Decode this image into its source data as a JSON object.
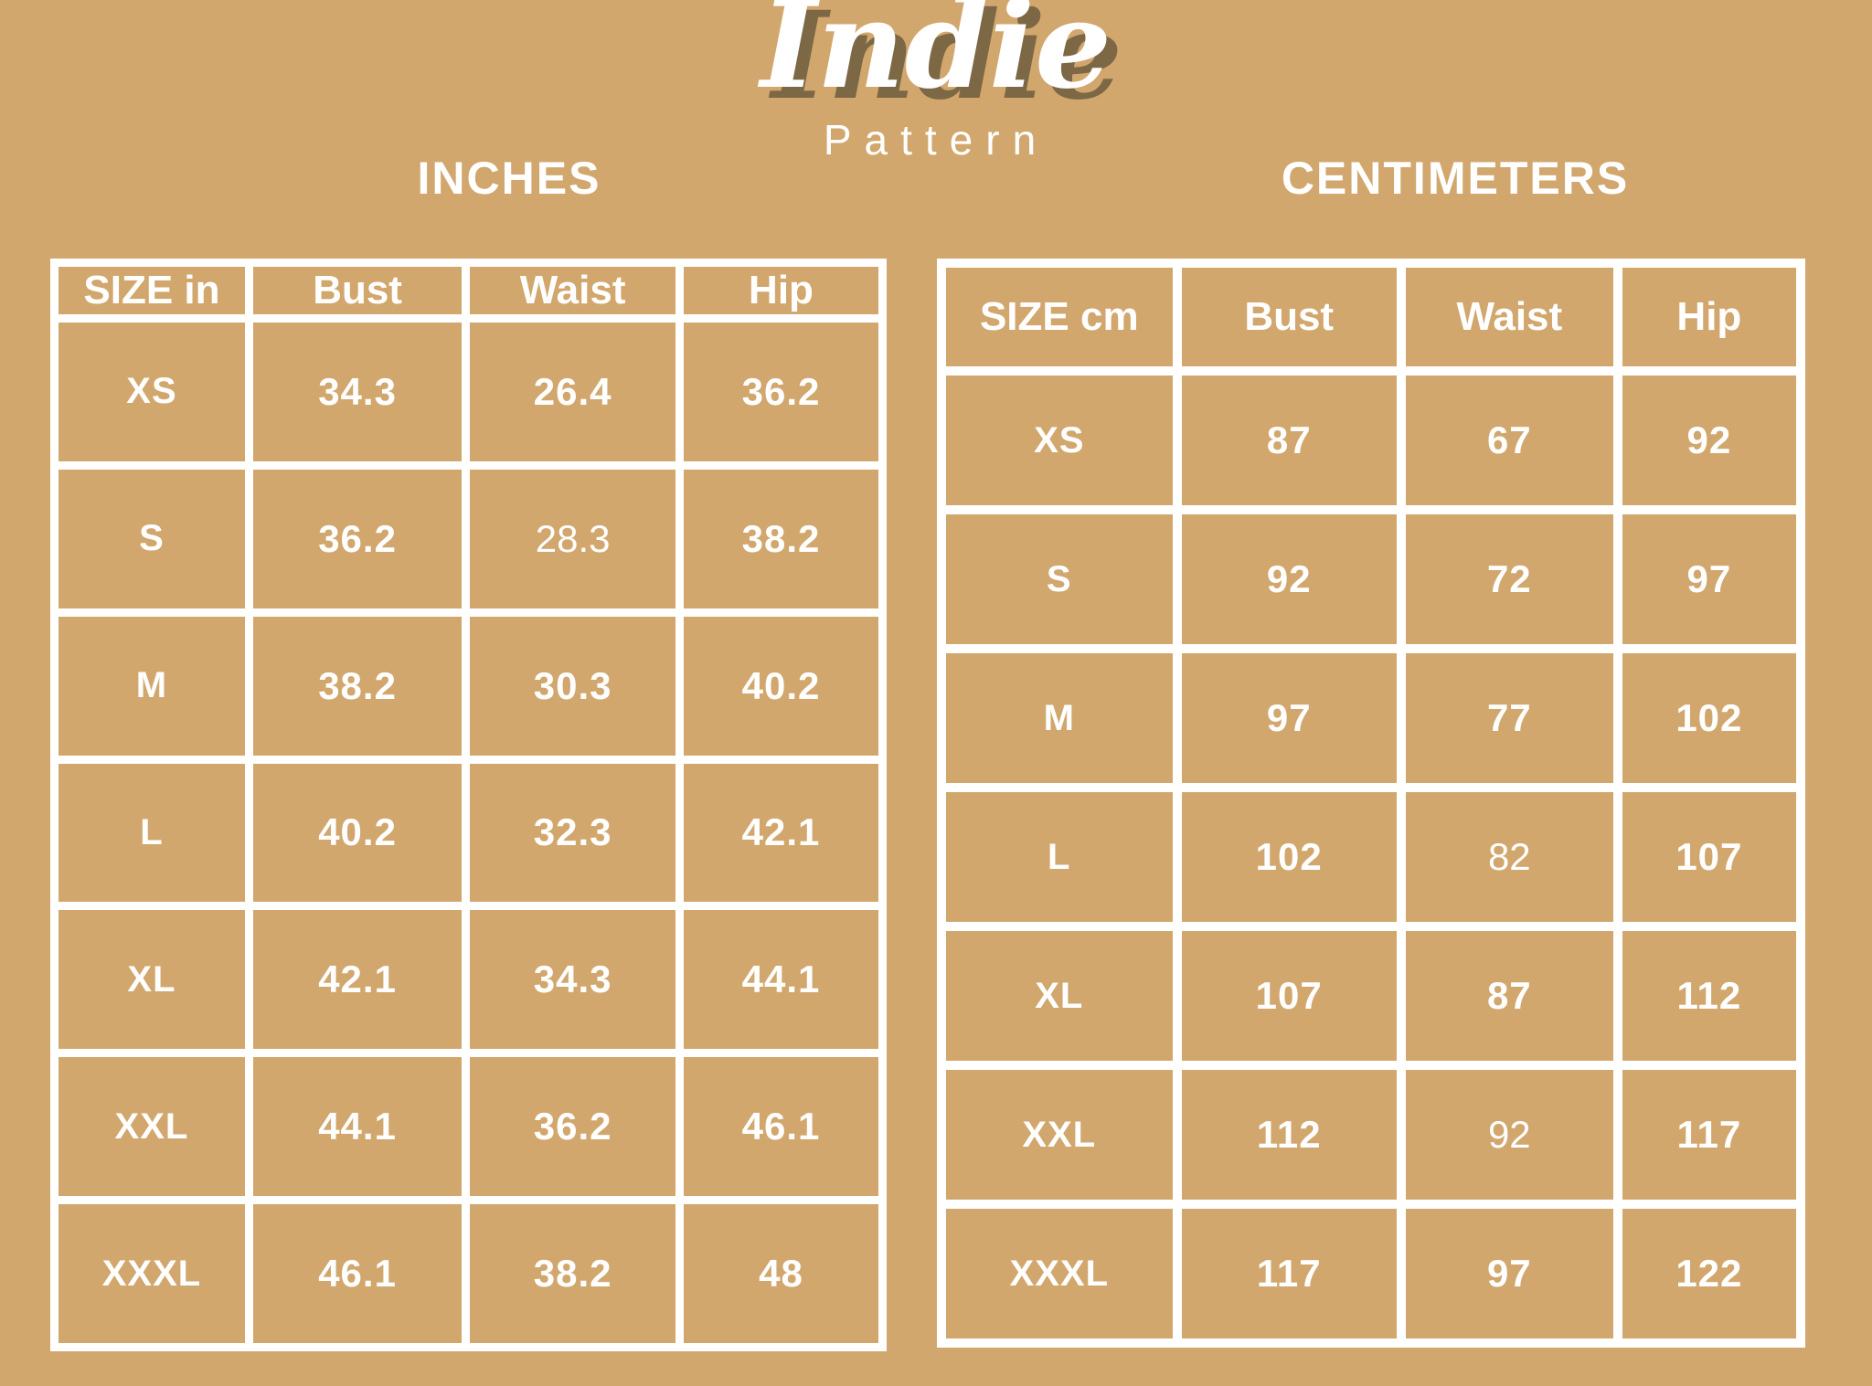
{
  "brand": {
    "name": "Indie",
    "subtitle": "Pattern"
  },
  "sections": {
    "inches_title": "INCHES",
    "centimeters_title": "CENTIMETERS"
  },
  "colors": {
    "background": "#D2A76E",
    "text": "#FFFFFF",
    "table_border": "#FFFFFF",
    "logo_shadow": "#7D6845"
  },
  "chart_data": [
    {
      "type": "table",
      "title": "INCHES",
      "columns": [
        "SIZE in",
        "Bust",
        "Waist",
        "Hip"
      ],
      "rows": [
        [
          "XS",
          "34.3",
          "26.4",
          "36.2"
        ],
        [
          "S",
          "36.2",
          "28.3",
          "38.2"
        ],
        [
          "M",
          "38.2",
          "30.3",
          "40.2"
        ],
        [
          "L",
          "40.2",
          "32.3",
          "42.1"
        ],
        [
          "XL",
          "42.1",
          "34.3",
          "44.1"
        ],
        [
          "XXL",
          "44.1",
          "36.2",
          "46.1"
        ],
        [
          "XXXL",
          "46.1",
          "38.2",
          "48"
        ]
      ],
      "light_weight_cells": [
        [
          1,
          2
        ]
      ],
      "column_widths_pct": [
        23.5,
        26.2,
        25.8,
        24.5
      ]
    },
    {
      "type": "table",
      "title": "CENTIMETERS",
      "columns": [
        "SIZE cm",
        "Bust",
        "Waist",
        "Hip"
      ],
      "rows": [
        [
          "XS",
          "87",
          "67",
          "92"
        ],
        [
          "S",
          "92",
          "72",
          "97"
        ],
        [
          "M",
          "97",
          "77",
          "102"
        ],
        [
          "L",
          "102",
          "82",
          "107"
        ],
        [
          "XL",
          "107",
          "87",
          "112"
        ],
        [
          "XXL",
          "112",
          "92",
          "117"
        ],
        [
          "XXXL",
          "117",
          "97",
          "122"
        ]
      ],
      "light_weight_cells": [
        [
          3,
          2
        ],
        [
          5,
          2
        ]
      ],
      "column_widths_pct": [
        27.4,
        26.1,
        25.2,
        21.3
      ]
    }
  ]
}
